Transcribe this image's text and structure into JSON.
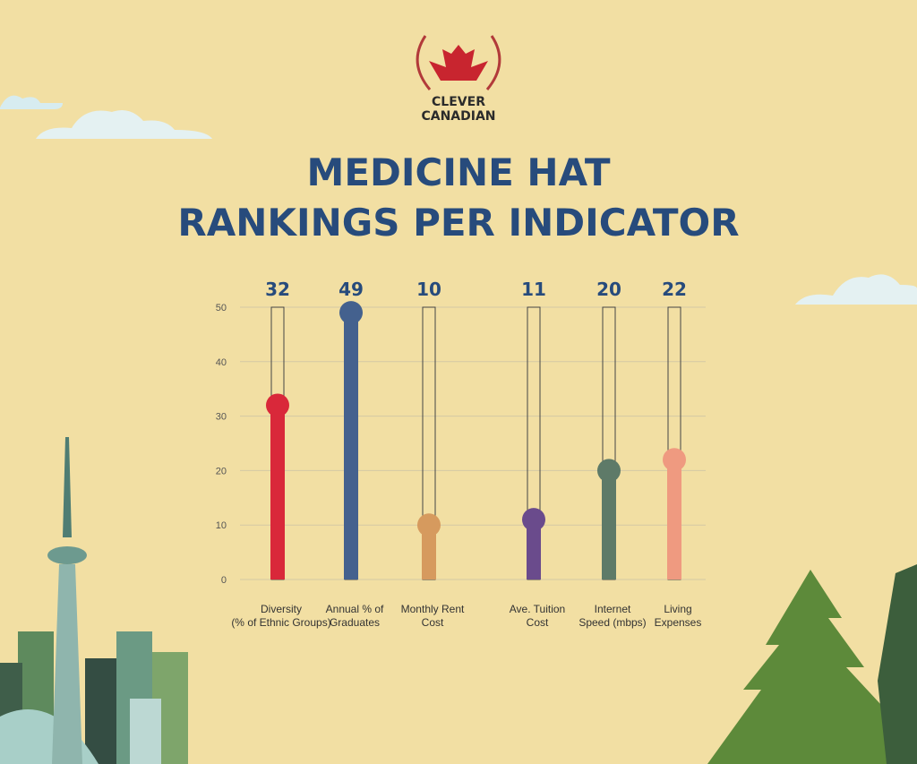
{
  "brand": [
    "CLEVER",
    "CANADIAN"
  ],
  "chart_data": {
    "type": "bar",
    "title": [
      "MEDICINE HAT",
      "RANKINGS PER INDICATOR"
    ],
    "categories": [
      [
        "Diversity",
        "(% of Ethnic Groups)"
      ],
      [
        "Annual % of",
        "Graduates"
      ],
      [
        "Monthly Rent",
        "Cost"
      ],
      [
        "Ave. Tuition",
        "Cost"
      ],
      [
        "Internet",
        "Speed (mbps)"
      ],
      [
        "Living",
        "Expenses"
      ]
    ],
    "values": [
      32,
      49,
      10,
      11,
      20,
      22
    ],
    "colors": [
      "#d9283a",
      "#44618e",
      "#d69a5e",
      "#6a4b8c",
      "#5e7a68",
      "#ef9a80"
    ],
    "ylim": [
      0,
      50
    ],
    "yticks": [
      0,
      10,
      20,
      30,
      40,
      50
    ],
    "grid": true
  }
}
